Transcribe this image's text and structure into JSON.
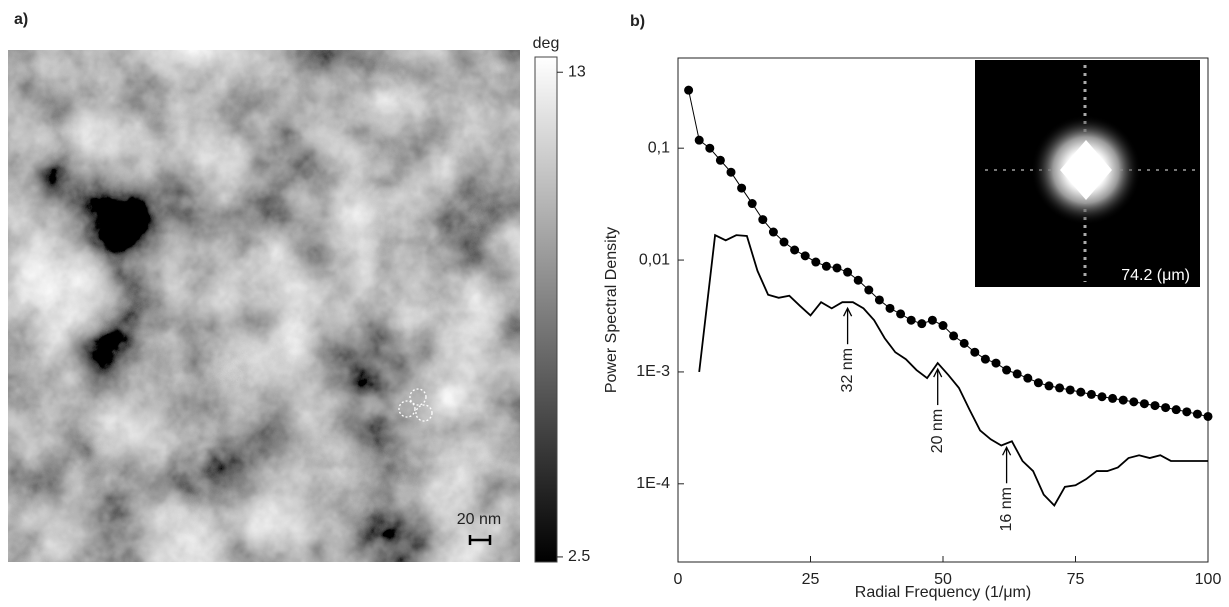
{
  "chart_data": [
    {
      "type": "image",
      "label": "a)",
      "scale_bar": "20 nm",
      "colorbar": {
        "label": "deg",
        "clim": [
          2.39,
          13.33
        ],
        "ticks": [
          13,
          2.5
        ]
      }
    },
    {
      "type": "line",
      "label": "b)",
      "xlabel": "Radial Frequency (1/μm)",
      "ylabel": "Power Spectral Density",
      "xlim": [
        0,
        100
      ],
      "xticks": [
        0,
        25,
        50,
        75,
        100
      ],
      "ylim": [
        2e-05,
        0.64
      ],
      "log_y": true,
      "yticks": [
        {
          "value": 0.1,
          "label": "0,1"
        },
        {
          "value": 0.01,
          "label": "0,01"
        },
        {
          "value": 0.001,
          "label": "1E-3"
        },
        {
          "value": 0.0001,
          "label": "1E-4"
        }
      ],
      "series": [
        {
          "color": "#000000",
          "marker": "circle",
          "x": [
            2,
            4,
            6,
            8,
            10,
            12,
            14,
            16,
            18,
            20,
            22,
            24,
            26,
            28,
            30,
            32,
            34,
            36,
            38,
            40,
            42,
            44,
            46,
            48,
            50,
            52,
            54,
            56,
            58,
            60,
            62,
            64,
            66,
            68,
            70,
            72,
            74,
            76,
            78,
            80,
            82,
            84,
            86,
            88,
            90,
            92,
            94,
            96,
            98,
            100
          ],
          "values": [
            0.33,
            0.118,
            0.1,
            0.078,
            0.061,
            0.044,
            0.032,
            0.023,
            0.0178,
            0.0145,
            0.0123,
            0.0109,
            0.0096,
            0.0088,
            0.0085,
            0.0078,
            0.0066,
            0.0054,
            0.0044,
            0.0037,
            0.0033,
            0.0029,
            0.0027,
            0.0029,
            0.0026,
            0.0021,
            0.0018,
            0.0015,
            0.0013,
            0.0012,
            0.00104,
            0.00096,
            0.00088,
            0.0008,
            0.00075,
            0.00072,
            0.00069,
            0.00066,
            0.00063,
            0.0006,
            0.00058,
            0.00056,
            0.00054,
            0.00052,
            0.0005,
            0.00048,
            0.00046,
            0.00044,
            0.00042,
            0.0004
          ]
        },
        {
          "color": "#000000",
          "marker": "none",
          "x": [
            4,
            7,
            9,
            11,
            13,
            15,
            17,
            19,
            21,
            23,
            25,
            27,
            29,
            31,
            33,
            35,
            37,
            39,
            41,
            43,
            45,
            47,
            49,
            51,
            53,
            55,
            57,
            59,
            61,
            63,
            65,
            67,
            69,
            71,
            73,
            75,
            77,
            79,
            81,
            83,
            85,
            87,
            89,
            91,
            93,
            95,
            97,
            100
          ],
          "values": [
            0.001,
            0.0167,
            0.015,
            0.0167,
            0.0164,
            0.008,
            0.0049,
            0.0046,
            0.0048,
            0.0039,
            0.0032,
            0.0042,
            0.0037,
            0.0042,
            0.0042,
            0.0037,
            0.0029,
            0.002,
            0.0015,
            0.0013,
            0.00104,
            0.00088,
            0.0012,
            0.00094,
            0.00072,
            0.00046,
            0.0003,
            0.00025,
            0.00022,
            0.00024,
            0.00016,
            0.00013,
            8e-05,
            6.4e-05,
            9.4e-05,
            9.7e-05,
            0.00011,
            0.00013,
            0.00013,
            0.00014,
            0.00017,
            0.00018,
            0.00017,
            0.00018,
            0.00016,
            0.00016,
            0.00016,
            0.00016
          ]
        }
      ],
      "annotations": [
        {
          "text": "32 nm",
          "x": 32,
          "y": 0.0042
        },
        {
          "text": "20 nm",
          "x": 49,
          "y": 0.0012
        },
        {
          "text": "16 nm",
          "x": 62,
          "y": 0.00024
        }
      ],
      "inset_label": "74.2 (μm)"
    }
  ]
}
